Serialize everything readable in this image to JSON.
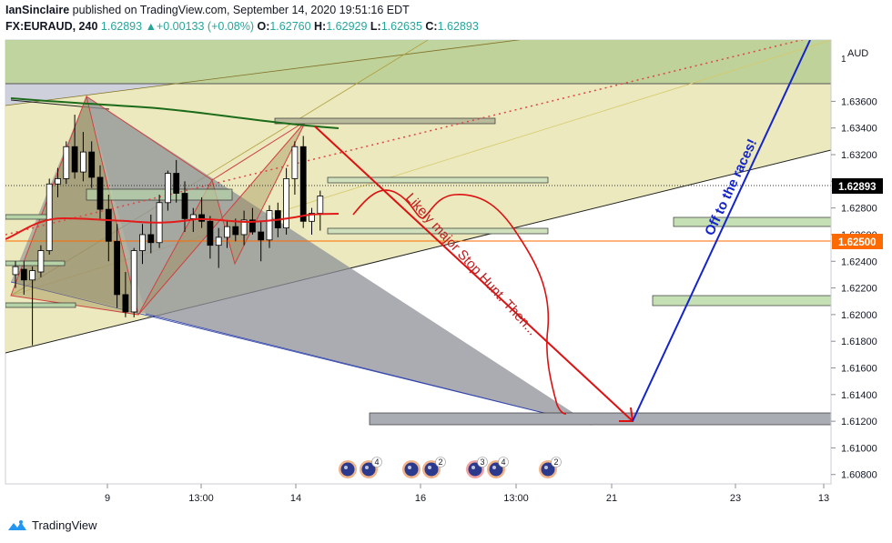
{
  "header": {
    "author": "IanSinclaire",
    "published_text": " published on TradingView.com, September 14, 2020 19:51:16 EDT",
    "symbol": "FX:EURAUD, 240",
    "last": "1.62893",
    "change": "+0.00133 (+0.08%)",
    "o_label": "O:",
    "o": "1.62760",
    "h_label": "H:",
    "h": "1.62929",
    "l_label": "L:",
    "l": "1.62635",
    "c_label": "C:",
    "c": "1.62893"
  },
  "axis": {
    "currency": "AUD",
    "scale_marker": "1",
    "price_ticks": [
      "1.63600",
      "1.63400",
      "1.63200",
      "1.63000",
      "1.62800",
      "1.62600",
      "1.62400",
      "1.62200",
      "1.62000",
      "1.61800",
      "1.61600",
      "1.61400",
      "1.61200",
      "1.61000",
      "1.60800"
    ],
    "time_ticks": [
      "9",
      "13:00",
      "14",
      "16",
      "13:00",
      "21",
      "23",
      "13"
    ],
    "current_price_label": "1.62893",
    "line_price_label": "1.62500"
  },
  "events": [
    {
      "count": "4"
    },
    {
      "count": "2"
    },
    {
      "count": "3"
    },
    {
      "count": "4"
    },
    {
      "count": "2"
    }
  ],
  "annotations": {
    "stop_hunt": "Likely major Stop Hunt. Then...",
    "races": "Off to the races!"
  },
  "footer": {
    "brand": "TradingView"
  },
  "colors": {
    "up": "#26a69a",
    "candle_up": "#ffffff",
    "candle_down": "#000000",
    "ma_green": "#1b6b1b",
    "ma_red": "#e31b1b",
    "hline_red": "#ff6a00",
    "drawing_red": "#dd1111",
    "drawing_blue": "#1424c8"
  },
  "chart_data": {
    "type": "candlestick",
    "symbol": "FX:EURAUD",
    "timeframe": "240",
    "ylim": [
      1.6073,
      1.6406
    ],
    "current_price": 1.62893,
    "horizontal_line": 1.625,
    "candles": [
      {
        "o": 1.623,
        "h": 1.624,
        "l": 1.622,
        "c": 1.6236
      },
      {
        "o": 1.6234,
        "h": 1.624,
        "l": 1.6215,
        "c": 1.6226
      },
      {
        "o": 1.6226,
        "h": 1.6236,
        "l": 1.6177,
        "c": 1.6233
      },
      {
        "o": 1.6232,
        "h": 1.6252,
        "l": 1.6228,
        "c": 1.6248
      },
      {
        "o": 1.6248,
        "h": 1.6302,
        "l": 1.6245,
        "c": 1.6298
      },
      {
        "o": 1.6298,
        "h": 1.631,
        "l": 1.6288,
        "c": 1.6302
      },
      {
        "o": 1.6302,
        "h": 1.633,
        "l": 1.6298,
        "c": 1.6326
      },
      {
        "o": 1.6326,
        "h": 1.635,
        "l": 1.6302,
        "c": 1.6307
      },
      {
        "o": 1.6307,
        "h": 1.6337,
        "l": 1.63,
        "c": 1.6322
      },
      {
        "o": 1.6322,
        "h": 1.633,
        "l": 1.6295,
        "c": 1.6303
      },
      {
        "o": 1.6303,
        "h": 1.6312,
        "l": 1.6272,
        "c": 1.6279
      },
      {
        "o": 1.6279,
        "h": 1.629,
        "l": 1.624,
        "c": 1.6255
      },
      {
        "o": 1.6255,
        "h": 1.6268,
        "l": 1.6205,
        "c": 1.6215
      },
      {
        "o": 1.6215,
        "h": 1.6232,
        "l": 1.6198,
        "c": 1.6202
      },
      {
        "o": 1.6202,
        "h": 1.625,
        "l": 1.6198,
        "c": 1.6248
      },
      {
        "o": 1.6248,
        "h": 1.6268,
        "l": 1.6238,
        "c": 1.626
      },
      {
        "o": 1.626,
        "h": 1.6275,
        "l": 1.6246,
        "c": 1.6254
      },
      {
        "o": 1.6254,
        "h": 1.629,
        "l": 1.625,
        "c": 1.6284
      },
      {
        "o": 1.6284,
        "h": 1.6308,
        "l": 1.6278,
        "c": 1.6306
      },
      {
        "o": 1.6306,
        "h": 1.6316,
        "l": 1.6284,
        "c": 1.6291
      },
      {
        "o": 1.6291,
        "h": 1.63,
        "l": 1.6262,
        "c": 1.6272
      },
      {
        "o": 1.6272,
        "h": 1.628,
        "l": 1.6262,
        "c": 1.6275
      },
      {
        "o": 1.6275,
        "h": 1.6288,
        "l": 1.6265,
        "c": 1.627
      },
      {
        "o": 1.627,
        "h": 1.6274,
        "l": 1.6242,
        "c": 1.6252
      },
      {
        "o": 1.6252,
        "h": 1.6265,
        "l": 1.6235,
        "c": 1.6258
      },
      {
        "o": 1.6258,
        "h": 1.627,
        "l": 1.625,
        "c": 1.6266
      },
      {
        "o": 1.6266,
        "h": 1.6272,
        "l": 1.6255,
        "c": 1.626
      },
      {
        "o": 1.626,
        "h": 1.6278,
        "l": 1.6252,
        "c": 1.6271
      },
      {
        "o": 1.6271,
        "h": 1.628,
        "l": 1.626,
        "c": 1.6262
      },
      {
        "o": 1.6262,
        "h": 1.627,
        "l": 1.624,
        "c": 1.6256
      },
      {
        "o": 1.6256,
        "h": 1.6282,
        "l": 1.625,
        "c": 1.6278
      },
      {
        "o": 1.6278,
        "h": 1.6284,
        "l": 1.6258,
        "c": 1.6265
      },
      {
        "o": 1.6265,
        "h": 1.631,
        "l": 1.626,
        "c": 1.6302
      },
      {
        "o": 1.6302,
        "h": 1.633,
        "l": 1.629,
        "c": 1.6326
      },
      {
        "o": 1.6326,
        "h": 1.6334,
        "l": 1.6265,
        "c": 1.627
      },
      {
        "o": 1.627,
        "h": 1.628,
        "l": 1.626,
        "c": 1.6276
      },
      {
        "o": 1.6276,
        "h": 1.6293,
        "l": 1.6263,
        "c": 1.6289
      }
    ]
  }
}
